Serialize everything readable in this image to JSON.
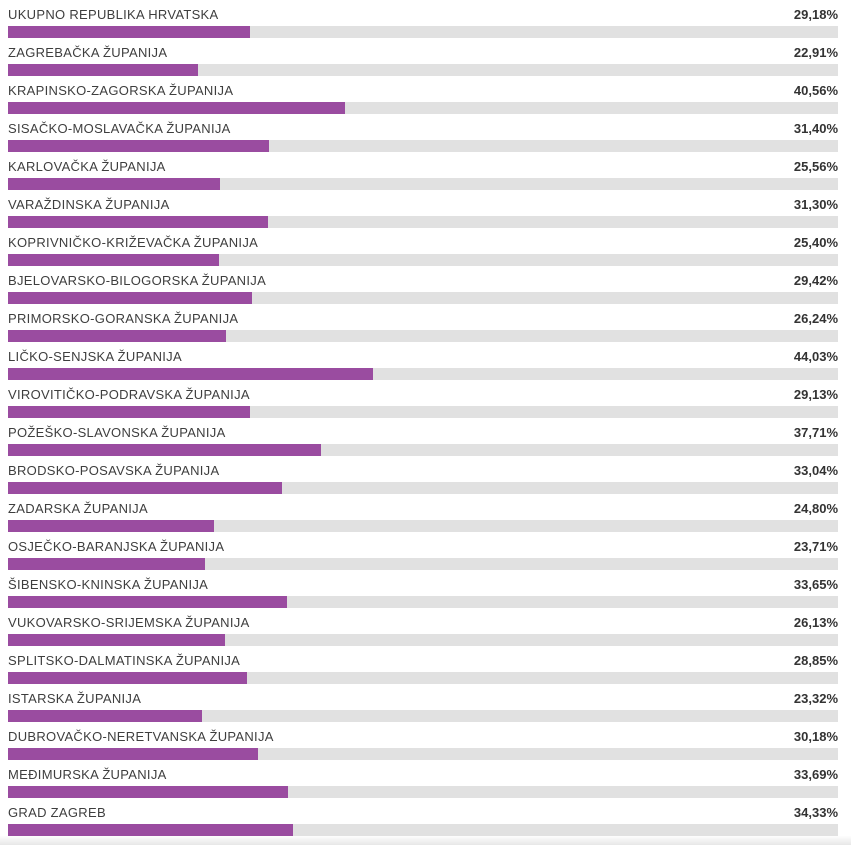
{
  "colors": {
    "bar_fill": "#9a4ca0",
    "bar_track": "#e1e1e1",
    "label_text": "#3e3e3e",
    "value_text": "#333333",
    "background": "#ffffff"
  },
  "chart_data": {
    "type": "bar",
    "orientation": "horizontal",
    "title": "",
    "xlabel": "",
    "ylabel": "",
    "unit": "%",
    "xlim": [
      0,
      100
    ],
    "grid": false,
    "legend": false,
    "decimal_separator": ",",
    "categories": [
      "UKUPNO REPUBLIKA HRVATSKA",
      "ZAGREBAČKA ŽUPANIJA",
      "KRAPINSKO-ZAGORSKA ŽUPANIJA",
      "SISAČKO-MOSLAVAČKA ŽUPANIJA",
      "KARLOVAČKA ŽUPANIJA",
      "VARAŽDINSKA ŽUPANIJA",
      "KOPRIVNIČKO-KRIŽEVAČKA ŽUPANIJA",
      "BJELOVARSKO-BILOGORSKA ŽUPANIJA",
      "PRIMORSKO-GORANSKA ŽUPANIJA",
      "LIČKO-SENJSKA ŽUPANIJA",
      "VIROVITIČKO-PODRAVSKA ŽUPANIJA",
      "POŽEŠKO-SLAVONSKA ŽUPANIJA",
      "BRODSKO-POSAVSKA ŽUPANIJA",
      "ZADARSKA ŽUPANIJA",
      "OSJEČKO-BARANJSKA ŽUPANIJA",
      "ŠIBENSKO-KNINSKA ŽUPANIJA",
      "VUKOVARSKO-SRIJEMSKA ŽUPANIJA",
      "SPLITSKO-DALMATINSKA ŽUPANIJA",
      "ISTARSKA ŽUPANIJA",
      "DUBROVAČKO-NERETVANSKA ŽUPANIJA",
      "MEĐIMURSKA ŽUPANIJA",
      "GRAD ZAGREB"
    ],
    "values": [
      29.18,
      22.91,
      40.56,
      31.4,
      25.56,
      31.3,
      25.4,
      29.42,
      26.24,
      44.03,
      29.13,
      37.71,
      33.04,
      24.8,
      23.71,
      33.65,
      26.13,
      28.85,
      23.32,
      30.18,
      33.69,
      34.33
    ],
    "display_values": [
      "29,18%",
      "22,91%",
      "40,56%",
      "31,40%",
      "25,56%",
      "31,30%",
      "25,40%",
      "29,42%",
      "26,24%",
      "44,03%",
      "29,13%",
      "37,71%",
      "33,04%",
      "24,80%",
      "23,71%",
      "33,65%",
      "26,13%",
      "28,85%",
      "23,32%",
      "30,18%",
      "33,69%",
      "34,33%"
    ]
  }
}
